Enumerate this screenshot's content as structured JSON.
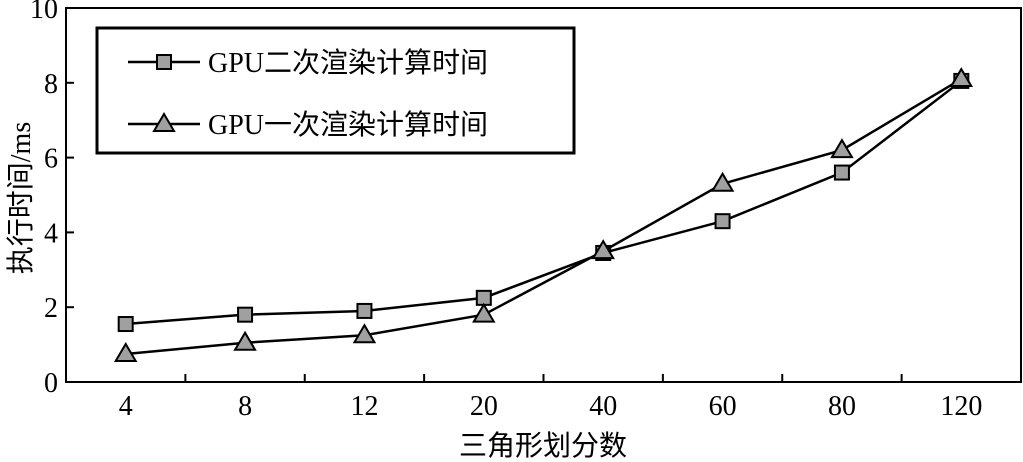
{
  "chart_data": {
    "type": "line",
    "categories": [
      "4",
      "8",
      "12",
      "20",
      "40",
      "60",
      "80",
      "120"
    ],
    "series": [
      {
        "name": "GPU二次渲染计算时间",
        "marker": "square",
        "values": [
          1.55,
          1.8,
          1.9,
          2.25,
          3.45,
          4.3,
          5.6,
          8.05
        ]
      },
      {
        "name": "GPU一次渲染计算时间",
        "marker": "triangle",
        "values": [
          0.75,
          1.05,
          1.25,
          1.8,
          3.5,
          5.3,
          6.2,
          8.1
        ]
      }
    ],
    "title": "",
    "xlabel": "三角形划分数",
    "ylabel": "执行时间/ms",
    "ylim": [
      0,
      10
    ],
    "yticks": [
      "0",
      "2",
      "4",
      "6",
      "8",
      "10"
    ],
    "grid": false,
    "legend_position": "top-left",
    "colors": {
      "line": "#000000",
      "marker_fill": "#a0a0a0"
    }
  }
}
